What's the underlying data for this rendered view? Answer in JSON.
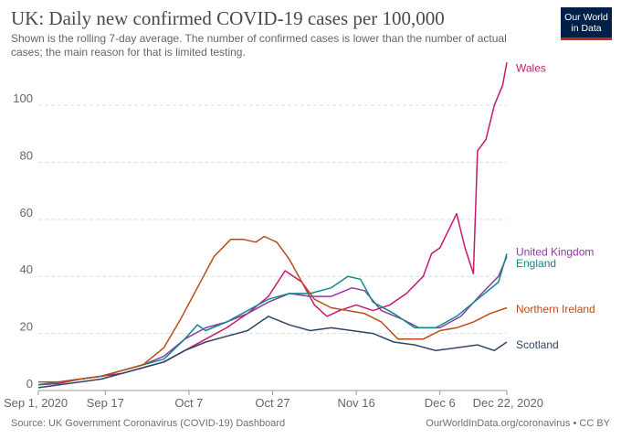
{
  "header": {
    "title": "UK: Daily new confirmed COVID-19 cases per 100,000",
    "subtitle": "Shown is the rolling 7-day average. The number of confirmed cases is lower than the number of actual cases; the main reason for that is limited testing.",
    "logo_line1": "Our World",
    "logo_line2": "in Data"
  },
  "footer": {
    "source": "Source: UK Government Coronavirus (COVID-19) Dashboard",
    "credit": "OurWorldInData.org/coronavirus • CC BY"
  },
  "colors": {
    "Wales": "#c7186f",
    "United Kingdom": "#8d3b9d",
    "England": "#0e8b86",
    "Northern Ireland": "#b84d18",
    "Scotland": "#2f4562",
    "grid": "#dddddd",
    "axis_text": "#666666"
  },
  "chart_data": {
    "type": "line",
    "title": "UK: Daily new confirmed COVID-19 cases per 100,000",
    "subtitle": "Shown is the rolling 7-day average. The number of confirmed cases is lower than the number of actual cases; the main reason for that is limited testing.",
    "x_tick_labels": [
      "Sep 1, 2020",
      "Sep 17",
      "Oct 7",
      "Oct 27",
      "Nov 16",
      "Dec 6",
      "Dec 22, 2020"
    ],
    "x_tick_dates": [
      "2020-09-01",
      "2020-09-17",
      "2020-10-07",
      "2020-10-27",
      "2020-11-16",
      "2020-12-06",
      "2020-12-22"
    ],
    "y_ticks": [
      0,
      20,
      40,
      60,
      80,
      100
    ],
    "ylim": [
      0,
      117
    ],
    "xlim": [
      "2020-09-01",
      "2020-12-22"
    ],
    "grid": "horizontal dashed",
    "legend": "labels at right end of lines",
    "series": [
      {
        "name": "Wales",
        "points": [
          [
            "2020-09-01",
            2
          ],
          [
            "2020-09-06",
            2.5
          ],
          [
            "2020-09-11",
            4
          ],
          [
            "2020-09-16",
            5
          ],
          [
            "2020-09-21",
            6
          ],
          [
            "2020-09-26",
            8
          ],
          [
            "2020-10-01",
            10
          ],
          [
            "2020-10-06",
            14
          ],
          [
            "2020-10-11",
            18
          ],
          [
            "2020-10-16",
            22
          ],
          [
            "2020-10-21",
            27
          ],
          [
            "2020-10-26",
            33
          ],
          [
            "2020-10-30",
            42
          ],
          [
            "2020-11-03",
            38
          ],
          [
            "2020-11-06",
            30
          ],
          [
            "2020-11-09",
            26
          ],
          [
            "2020-11-12",
            28
          ],
          [
            "2020-11-16",
            30
          ],
          [
            "2020-11-20",
            28
          ],
          [
            "2020-11-24",
            30
          ],
          [
            "2020-11-28",
            34
          ],
          [
            "2020-12-02",
            40
          ],
          [
            "2020-12-04",
            48
          ],
          [
            "2020-12-06",
            50
          ],
          [
            "2020-12-08",
            56
          ],
          [
            "2020-12-10",
            62
          ],
          [
            "2020-12-12",
            50
          ],
          [
            "2020-12-14",
            41
          ],
          [
            "2020-12-15",
            84
          ],
          [
            "2020-12-17",
            88
          ],
          [
            "2020-12-19",
            100
          ],
          [
            "2020-12-21",
            107
          ],
          [
            "2020-12-22",
            115
          ]
        ]
      },
      {
        "name": "United Kingdom",
        "points": [
          [
            "2020-09-01",
            2
          ],
          [
            "2020-09-06",
            3
          ],
          [
            "2020-09-11",
            4
          ],
          [
            "2020-09-16",
            5
          ],
          [
            "2020-09-21",
            7
          ],
          [
            "2020-09-26",
            9
          ],
          [
            "2020-10-01",
            12
          ],
          [
            "2020-10-06",
            18
          ],
          [
            "2020-10-11",
            22
          ],
          [
            "2020-10-16",
            24
          ],
          [
            "2020-10-21",
            27
          ],
          [
            "2020-10-26",
            31
          ],
          [
            "2020-10-31",
            34
          ],
          [
            "2020-11-05",
            33
          ],
          [
            "2020-11-10",
            33
          ],
          [
            "2020-11-15",
            36
          ],
          [
            "2020-11-18",
            35
          ],
          [
            "2020-11-22",
            28
          ],
          [
            "2020-11-27",
            25
          ],
          [
            "2020-12-01",
            22
          ],
          [
            "2020-12-06",
            22
          ],
          [
            "2020-12-11",
            26
          ],
          [
            "2020-12-16",
            34
          ],
          [
            "2020-12-20",
            40
          ],
          [
            "2020-12-22",
            47
          ]
        ]
      },
      {
        "name": "England",
        "points": [
          [
            "2020-09-01",
            2
          ],
          [
            "2020-09-06",
            3
          ],
          [
            "2020-09-11",
            4
          ],
          [
            "2020-09-16",
            5
          ],
          [
            "2020-09-21",
            7
          ],
          [
            "2020-09-26",
            9
          ],
          [
            "2020-10-01",
            11
          ],
          [
            "2020-10-06",
            18
          ],
          [
            "2020-10-09",
            23
          ],
          [
            "2020-10-11",
            21
          ],
          [
            "2020-10-16",
            24
          ],
          [
            "2020-10-21",
            28
          ],
          [
            "2020-10-26",
            32
          ],
          [
            "2020-10-31",
            34
          ],
          [
            "2020-11-05",
            34
          ],
          [
            "2020-11-10",
            36
          ],
          [
            "2020-11-14",
            40
          ],
          [
            "2020-11-17",
            39
          ],
          [
            "2020-11-20",
            31
          ],
          [
            "2020-11-25",
            27
          ],
          [
            "2020-11-30",
            22
          ],
          [
            "2020-12-05",
            22
          ],
          [
            "2020-12-10",
            26
          ],
          [
            "2020-12-15",
            32
          ],
          [
            "2020-12-20",
            38
          ],
          [
            "2020-12-22",
            48
          ]
        ]
      },
      {
        "name": "Northern Ireland",
        "points": [
          [
            "2020-09-01",
            3
          ],
          [
            "2020-09-06",
            3
          ],
          [
            "2020-09-11",
            4
          ],
          [
            "2020-09-16",
            5
          ],
          [
            "2020-09-21",
            7
          ],
          [
            "2020-09-26",
            9
          ],
          [
            "2020-10-01",
            15
          ],
          [
            "2020-10-05",
            25
          ],
          [
            "2020-10-09",
            36
          ],
          [
            "2020-10-13",
            47
          ],
          [
            "2020-10-17",
            53
          ],
          [
            "2020-10-20",
            53
          ],
          [
            "2020-10-23",
            52
          ],
          [
            "2020-10-25",
            54
          ],
          [
            "2020-10-28",
            52
          ],
          [
            "2020-10-31",
            46
          ],
          [
            "2020-11-03",
            38
          ],
          [
            "2020-11-06",
            32
          ],
          [
            "2020-11-10",
            29
          ],
          [
            "2020-11-14",
            28
          ],
          [
            "2020-11-18",
            27
          ],
          [
            "2020-11-22",
            24
          ],
          [
            "2020-11-26",
            18
          ],
          [
            "2020-11-30",
            18
          ],
          [
            "2020-12-02",
            18
          ],
          [
            "2020-12-06",
            21
          ],
          [
            "2020-12-10",
            22
          ],
          [
            "2020-12-14",
            24
          ],
          [
            "2020-12-18",
            27
          ],
          [
            "2020-12-22",
            29
          ]
        ]
      },
      {
        "name": "Scotland",
        "points": [
          [
            "2020-09-01",
            1
          ],
          [
            "2020-09-06",
            2
          ],
          [
            "2020-09-11",
            3
          ],
          [
            "2020-09-16",
            4
          ],
          [
            "2020-09-21",
            6
          ],
          [
            "2020-09-26",
            8
          ],
          [
            "2020-10-01",
            10
          ],
          [
            "2020-10-06",
            14
          ],
          [
            "2020-10-11",
            17
          ],
          [
            "2020-10-16",
            19
          ],
          [
            "2020-10-21",
            21
          ],
          [
            "2020-10-26",
            26
          ],
          [
            "2020-10-31",
            23
          ],
          [
            "2020-11-05",
            21
          ],
          [
            "2020-11-10",
            22
          ],
          [
            "2020-11-15",
            21
          ],
          [
            "2020-11-20",
            20
          ],
          [
            "2020-11-25",
            17
          ],
          [
            "2020-11-30",
            16
          ],
          [
            "2020-12-05",
            14
          ],
          [
            "2020-12-10",
            15
          ],
          [
            "2020-12-15",
            16
          ],
          [
            "2020-12-19",
            14
          ],
          [
            "2020-12-22",
            17
          ]
        ]
      }
    ]
  }
}
